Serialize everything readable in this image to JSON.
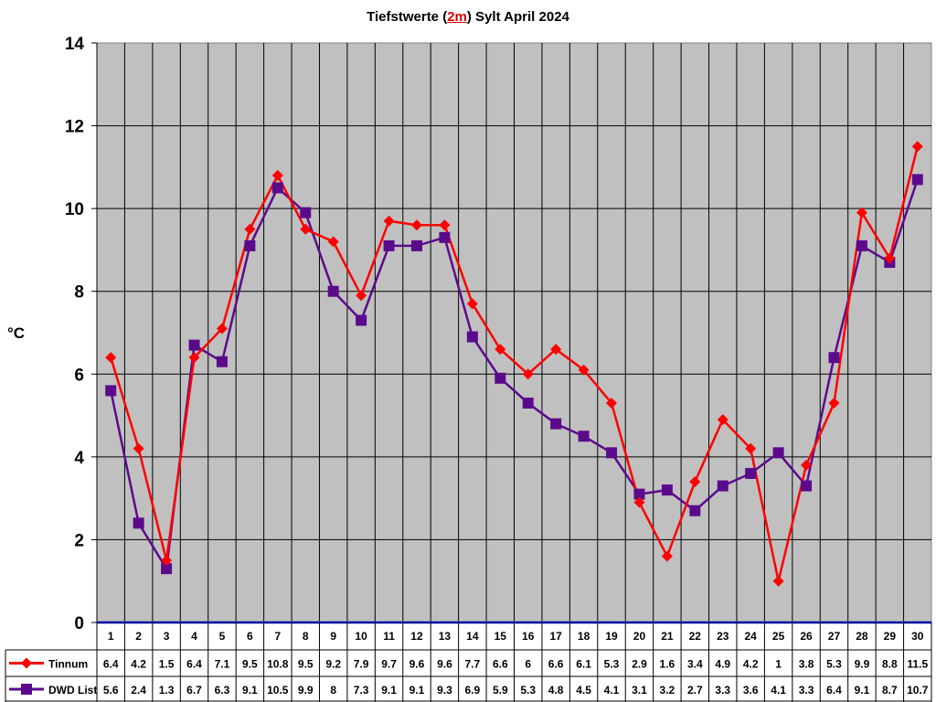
{
  "title": {
    "prefix": "Tiefstwerte (",
    "highlight": "2m",
    "suffix": ") Sylt April 2024"
  },
  "colors": {
    "plot_bg": "#c0c0c0",
    "tinnum": "#ff0000",
    "dwd": "#5c0a8c",
    "baseline": "#0000a0"
  },
  "chart_data": {
    "type": "line",
    "title": "Tiefstwerte (2m) Sylt April 2024",
    "xlabel": "",
    "ylabel": "°C",
    "ylim": [
      0,
      14
    ],
    "yticks": [
      0,
      2,
      4,
      6,
      8,
      10,
      12,
      14
    ],
    "grid": true,
    "legend_position": "data-table-left",
    "categories": [
      "1",
      "2",
      "3",
      "4",
      "5",
      "6",
      "7",
      "8",
      "9",
      "10",
      "11",
      "12",
      "13",
      "14",
      "15",
      "16",
      "17",
      "18",
      "19",
      "20",
      "21",
      "22",
      "23",
      "24",
      "25",
      "26",
      "27",
      "28",
      "29",
      "30"
    ],
    "series": [
      {
        "name": "Tinnum",
        "marker": "diamond",
        "color": "#ff0000",
        "values": [
          6.4,
          4.2,
          1.5,
          6.4,
          7.1,
          9.5,
          10.8,
          9.5,
          9.2,
          7.9,
          9.7,
          9.6,
          9.6,
          7.7,
          6.6,
          6,
          6.6,
          6.1,
          5.3,
          2.9,
          1.6,
          3.4,
          4.9,
          4.2,
          1,
          3.8,
          5.3,
          9.9,
          8.8,
          11.5
        ]
      },
      {
        "name": "DWD List",
        "marker": "square",
        "color": "#5c0a8c",
        "values": [
          5.6,
          2.4,
          1.3,
          6.7,
          6.3,
          9.1,
          10.5,
          9.9,
          8,
          7.3,
          9.1,
          9.1,
          9.3,
          6.9,
          5.9,
          5.3,
          4.8,
          4.5,
          4.1,
          3.1,
          3.2,
          2.7,
          3.3,
          3.6,
          4.1,
          3.3,
          6.4,
          9.1,
          8.7,
          10.7
        ]
      }
    ]
  }
}
